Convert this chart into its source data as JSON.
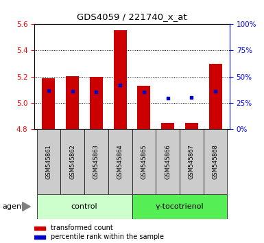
{
  "title": "GDS4059 / 221740_x_at",
  "samples": [
    "GSM545861",
    "GSM545862",
    "GSM545863",
    "GSM545864",
    "GSM545865",
    "GSM545866",
    "GSM545867",
    "GSM545868"
  ],
  "bar_values": [
    5.185,
    5.205,
    5.195,
    5.555,
    5.13,
    4.845,
    4.845,
    5.295
  ],
  "bar_base": 4.8,
  "percentile_values": [
    5.09,
    5.085,
    5.08,
    5.135,
    5.08,
    5.035,
    5.04,
    5.085
  ],
  "ylim": [
    4.8,
    5.6
  ],
  "yticks_left": [
    4.8,
    5.0,
    5.2,
    5.4,
    5.6
  ],
  "yticks_right_pct": [
    0,
    25,
    50,
    75,
    100
  ],
  "bar_color": "#cc0000",
  "percentile_color": "#0000cc",
  "control_label": "control",
  "treatment_label": "γ-tocotrienol",
  "agent_label": "agent",
  "legend_bar_label": "transformed count",
  "legend_pct_label": "percentile rank within the sample",
  "control_bg": "#ccffcc",
  "treatment_bg": "#55ee55",
  "sample_bg": "#cccccc",
  "fig_bg": "#ffffff"
}
